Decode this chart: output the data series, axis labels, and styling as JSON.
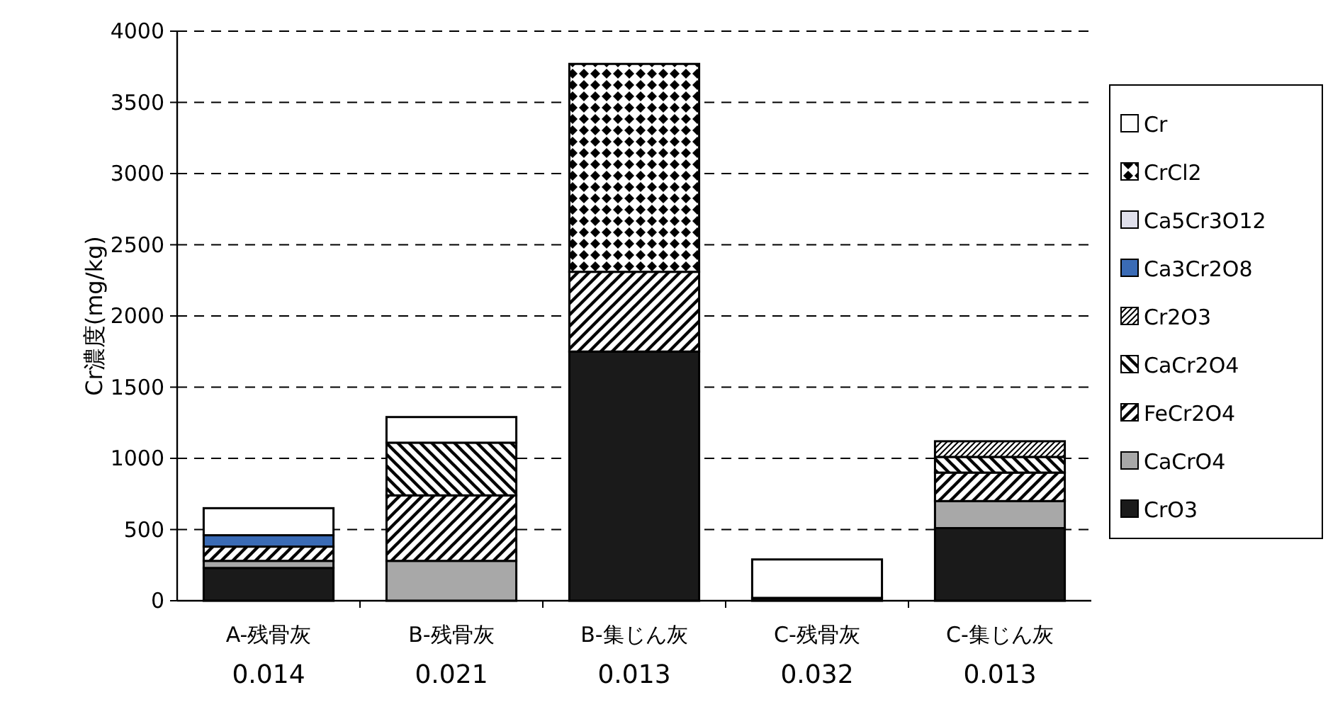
{
  "chart_data": {
    "type": "bar",
    "stacked": true,
    "ylabel": "Cr濃度(mg/kg)",
    "categories": [
      "A-残骨灰\n0.014",
      "B-残骨灰\n0.021",
      "B-集じん灰\n0.013",
      "C-残骨灰\n0.032",
      "C-集じん灰\n0.013"
    ],
    "series": [
      {
        "name": "CrO3",
        "color": "#1a1a1a",
        "values": [
          230,
          0,
          1750,
          20,
          510
        ]
      },
      {
        "name": "CaCrO4",
        "color": "#a8a8a8",
        "values": [
          50,
          280,
          0,
          0,
          190
        ]
      },
      {
        "name": "FeCr2O4",
        "color": "#000000",
        "values": [
          100,
          460,
          560,
          0,
          200
        ]
      },
      {
        "name": "CaCr2O4",
        "color": "#000000",
        "values": [
          0,
          370,
          0,
          0,
          110
        ]
      },
      {
        "name": "Cr2O3",
        "color": "#000000",
        "values": [
          0,
          0,
          0,
          0,
          110
        ]
      },
      {
        "name": "Ca3Cr2O8",
        "color": "#3a6bb5",
        "values": [
          80,
          0,
          0,
          0,
          0
        ]
      },
      {
        "name": "Ca5Cr3O12",
        "color": "#e0e0ec",
        "values": [
          0,
          0,
          0,
          0,
          0
        ]
      },
      {
        "name": "CrCl2",
        "color": "#000000",
        "values": [
          0,
          0,
          1460,
          0,
          0
        ]
      },
      {
        "name": "Cr",
        "color": "#ffffff",
        "values": [
          190,
          180,
          0,
          270,
          0
        ]
      }
    ],
    "ylim": [
      0,
      4000
    ],
    "yticks": [
      0,
      500,
      1000,
      1500,
      2000,
      2500,
      3000,
      3500,
      4000
    ],
    "grid": "y",
    "legend": "right"
  }
}
